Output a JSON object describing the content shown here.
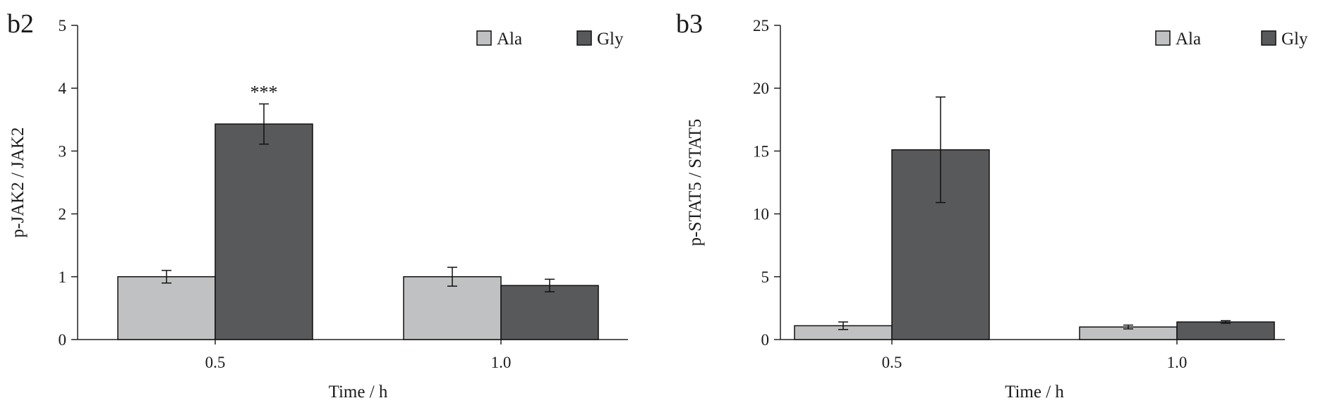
{
  "chart_data": [
    {
      "type": "bar",
      "panel_label": "b2",
      "categories": [
        "0.5",
        "1.0"
      ],
      "series": [
        {
          "name": "Ala",
          "values": [
            1.0,
            1.0
          ],
          "errors": [
            0.1,
            0.15
          ],
          "color": "#c0c1c2"
        },
        {
          "name": "Gly",
          "values": [
            3.43,
            0.86
          ],
          "errors": [
            0.32,
            0.1
          ],
          "color": "#58595b"
        }
      ],
      "annotations": [
        {
          "text": "***",
          "category": "0.5",
          "series": "Gly"
        }
      ],
      "xlabel": "Time / h",
      "ylabel": "p-JAK2 / JAK2",
      "ylim": [
        0,
        5
      ],
      "yticks": [
        "0",
        "1",
        "2",
        "3",
        "4",
        "5"
      ],
      "legend": "top-right",
      "grid": false
    },
    {
      "type": "bar",
      "panel_label": "b3",
      "categories": [
        "0.5",
        "1.0"
      ],
      "series": [
        {
          "name": "Ala",
          "values": [
            1.1,
            1.0
          ],
          "errors": [
            0.3,
            0.15
          ],
          "color": "#c0c1c2"
        },
        {
          "name": "Gly",
          "values": [
            15.1,
            1.4
          ],
          "errors": [
            4.2,
            0.1
          ],
          "color": "#58595b"
        }
      ],
      "annotations": [],
      "xlabel": "Time / h",
      "ylabel": "p-STAT5 / STAT5",
      "ylim": [
        0,
        25
      ],
      "yticks": [
        "0",
        "5",
        "10",
        "15",
        "20",
        "25"
      ],
      "legend": "top-right",
      "grid": false
    }
  ]
}
